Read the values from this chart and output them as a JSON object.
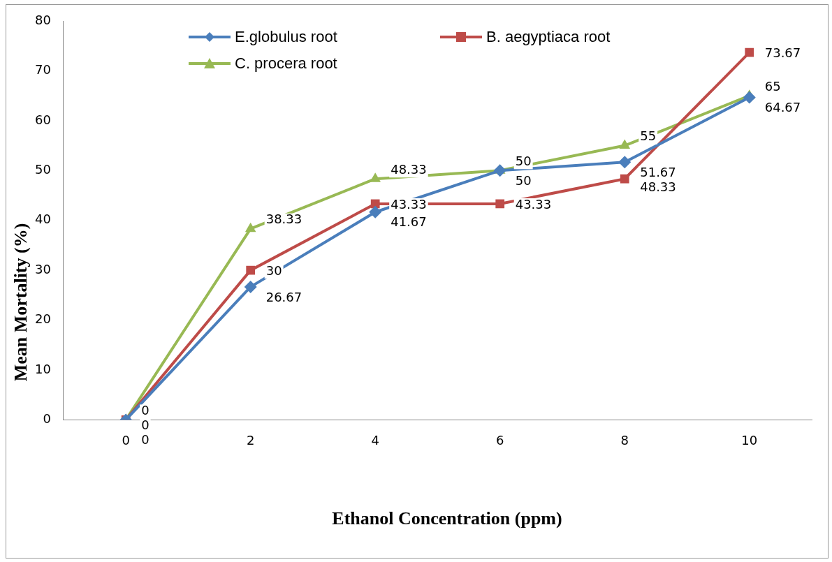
{
  "chart_data": {
    "type": "line",
    "xlabel": "Ethanol  Concentration  (ppm)",
    "ylabel": "Mean Mortality  (%)",
    "categories": [
      "0",
      "2",
      "4",
      "6",
      "8",
      "10"
    ],
    "series": [
      {
        "name": "E.globulus root",
        "color": "#4a7ebb",
        "values": [
          0,
          26.67,
          41.67,
          50,
          51.67,
          64.67
        ],
        "marker": "diamond"
      },
      {
        "name": "B. aegyptiaca root",
        "color": "#be4b48",
        "values": [
          0,
          30,
          43.33,
          43.33,
          48.33,
          73.67
        ],
        "marker": "square"
      },
      {
        "name": "C. procera root",
        "color": "#98b954",
        "values": [
          0,
          38.33,
          48.33,
          50,
          55,
          65
        ],
        "marker": "triangle"
      }
    ],
    "ylim": [
      0,
      80
    ],
    "yticks": [
      0,
      10,
      20,
      30,
      40,
      50,
      60,
      70,
      80
    ],
    "grid": false,
    "legend": "top",
    "data_labels": true,
    "line_style": "solid"
  }
}
